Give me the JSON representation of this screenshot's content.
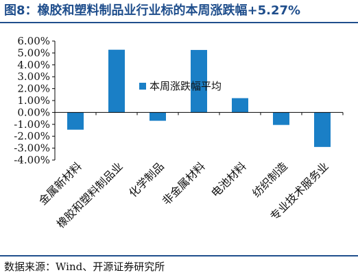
{
  "figure": {
    "title": "图8：橡胶和塑料制品业行业标的本周涨跌幅+5.27%",
    "source": "数据来源：Wind、开源证券研究所"
  },
  "chart_data": {
    "type": "bar",
    "categories": [
      "金属新材料",
      "橡胶和塑料制品业",
      "化学制品",
      "非金属材料",
      "电池材料",
      "纺织制造",
      "专业技术服务业"
    ],
    "series": [
      {
        "name": "本周涨跌幅平均",
        "values": [
          -1.45,
          5.27,
          -0.7,
          5.25,
          1.2,
          -1.05,
          -2.9
        ]
      }
    ],
    "yticks": [
      "6.00%",
      "5.00%",
      "4.00%",
      "3.00%",
      "2.00%",
      "1.00%",
      "0.00%",
      "-1.00%",
      "-2.00%",
      "-3.00%",
      "-4.00%"
    ],
    "ylim": [
      -4,
      6
    ],
    "y_unit": "%",
    "bar_color": "#1a7fc6",
    "grid": false,
    "legend_position": "inside-upper-center"
  }
}
